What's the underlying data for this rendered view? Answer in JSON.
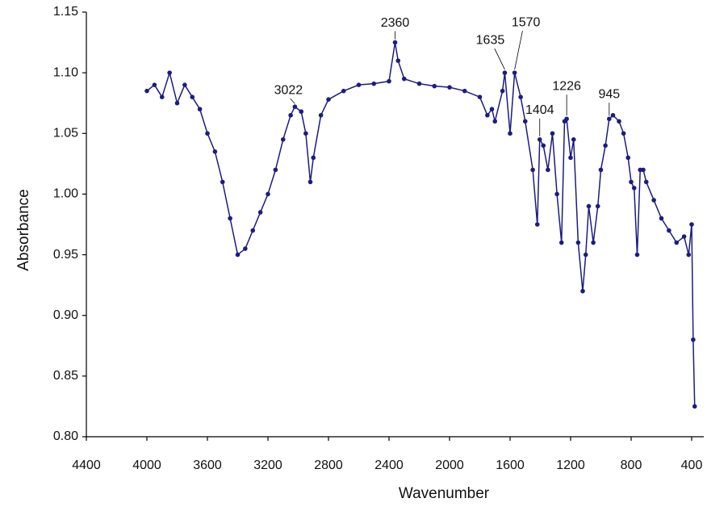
{
  "chart_data": {
    "type": "line",
    "x_label": "Wavenumber",
    "y_label": "Absorbance",
    "x": [
      4000,
      3950,
      3900,
      3850,
      3800,
      3750,
      3700,
      3650,
      3600,
      3550,
      3500,
      3450,
      3400,
      3350,
      3300,
      3250,
      3200,
      3150,
      3100,
      3050,
      3022,
      2980,
      2950,
      2920,
      2900,
      2850,
      2800,
      2700,
      2600,
      2500,
      2400,
      2360,
      2340,
      2300,
      2200,
      2100,
      2000,
      1900,
      1800,
      1750,
      1720,
      1700,
      1650,
      1635,
      1600,
      1570,
      1530,
      1500,
      1450,
      1420,
      1404,
      1380,
      1350,
      1320,
      1290,
      1260,
      1240,
      1226,
      1200,
      1180,
      1150,
      1120,
      1100,
      1080,
      1050,
      1020,
      1000,
      970,
      945,
      920,
      880,
      850,
      820,
      800,
      780,
      760,
      740,
      720,
      700,
      650,
      600,
      550,
      500,
      450,
      420,
      400,
      390,
      380
    ],
    "series": [
      {
        "color": "#1c1c80",
        "values": [
          1.085,
          1.09,
          1.08,
          1.1,
          1.075,
          1.09,
          1.08,
          1.07,
          1.05,
          1.035,
          1.01,
          0.98,
          0.95,
          0.955,
          0.97,
          0.985,
          1.0,
          1.02,
          1.045,
          1.065,
          1.072,
          1.068,
          1.05,
          1.01,
          1.03,
          1.065,
          1.078,
          1.085,
          1.09,
          1.091,
          1.093,
          1.125,
          1.11,
          1.095,
          1.091,
          1.089,
          1.088,
          1.085,
          1.08,
          1.065,
          1.07,
          1.06,
          1.085,
          1.1,
          1.05,
          1.1,
          1.08,
          1.06,
          1.02,
          0.975,
          1.045,
          1.04,
          1.02,
          1.05,
          1.0,
          0.96,
          1.06,
          1.062,
          1.03,
          1.045,
          0.96,
          0.92,
          0.95,
          0.99,
          0.96,
          0.99,
          1.02,
          1.04,
          1.062,
          1.065,
          1.06,
          1.05,
          1.03,
          1.01,
          1.005,
          0.95,
          1.02,
          1.02,
          1.01,
          0.995,
          0.98,
          0.97,
          0.96,
          0.965,
          0.95,
          0.975,
          0.88,
          0.825
        ]
      }
    ],
    "xlim": [
      4400,
      320
    ],
    "xticks": [
      4400,
      4000,
      3600,
      3200,
      2800,
      2400,
      2000,
      1600,
      1200,
      800,
      400
    ],
    "ylim": [
      0.8,
      1.15
    ],
    "yticks": [
      {
        "value": 0.8,
        "label": "0.80"
      },
      0.85,
      {
        "value": 0.9,
        "label": "0.90"
      },
      0.95,
      {
        "value": 1.0,
        "label": "1.00"
      },
      1.05,
      {
        "value": 1.1,
        "label": "1.10"
      },
      1.15
    ],
    "grid": false,
    "annotations": [
      {
        "text": "3022",
        "x": 3022,
        "y": 1.072
      },
      {
        "text": "2360",
        "x": 2360,
        "y": 1.125
      },
      {
        "text": "1635",
        "x": 1635,
        "y": 1.1
      },
      {
        "text": "1570",
        "x": 1570,
        "y": 1.1
      },
      {
        "text": "1404",
        "x": 1404,
        "y": 1.045
      },
      {
        "text": "1226",
        "x": 1226,
        "y": 1.062
      },
      {
        "text": "945",
        "x": 945,
        "y": 1.062
      }
    ]
  }
}
